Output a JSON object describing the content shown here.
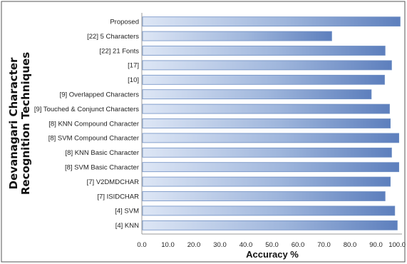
{
  "chart_data": {
    "type": "bar",
    "orientation": "horizontal",
    "xlabel": "Accuracy %",
    "ylabel_lines": [
      "Devanagari Character",
      "Recognition Techniques"
    ],
    "xlim": [
      0,
      100
    ],
    "x_ticks": [
      "0.0",
      "10.0",
      "20.0",
      "30.0",
      "40.0",
      "50.0",
      "60.0",
      "70.0",
      "80.0",
      "90.0",
      "100.0"
    ],
    "categories": [
      "Proposed",
      "[22] 5 Characters",
      "[22] 21 Fonts",
      "[17]",
      "[10]",
      "[9] Overlapped Characters",
      "[9] Touched & Conjunct Characters",
      "[8] KNN Compound Character",
      "[8] SVM Compound Character",
      "[8] KNN Basic Character",
      "[8] SVM Basic Character",
      "[7] V2DMDCHAR",
      "[7] ISIDCHAR",
      "[4] SVM",
      "[4] KNN"
    ],
    "values": [
      99.3,
      73.0,
      93.5,
      96.0,
      93.3,
      88.2,
      95.2,
      95.5,
      98.8,
      96.0,
      98.8,
      95.5,
      93.5,
      97.2,
      98.2
    ],
    "bar_color": "#6f8fc4",
    "grid": false
  }
}
